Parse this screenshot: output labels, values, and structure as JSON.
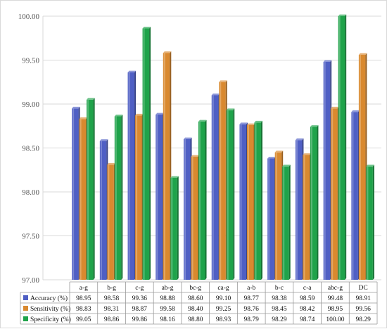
{
  "chart_data": {
    "type": "bar",
    "categories": [
      "a-g",
      "b-g",
      "c-g",
      "ab-g",
      "bc-g",
      "ca-g",
      "a-b",
      "b-c",
      "c-a",
      "abc-g",
      "DC"
    ],
    "series": [
      {
        "name": "Accuracy (%)",
        "color": "#4f5fc4",
        "values": [
          98.95,
          98.58,
          99.36,
          98.88,
          98.6,
          99.1,
          98.77,
          98.38,
          98.59,
          99.48,
          98.91
        ],
        "labels": [
          "98.95",
          "98.58",
          "99.36",
          "98.88",
          "98.60",
          "99.10",
          "98.77",
          "98.38",
          "98.59",
          "99.48",
          "98.91"
        ]
      },
      {
        "name": "Sensitivity (%)",
        "color": "#d9892f",
        "values": [
          98.83,
          98.31,
          98.87,
          99.58,
          98.4,
          99.25,
          98.76,
          98.45,
          98.42,
          98.95,
          99.56
        ],
        "labels": [
          "98.83",
          "98.31",
          "98.87",
          "99.58",
          "98.40",
          "99.25",
          "98.76",
          "98.45",
          "98.42",
          "98.95",
          "99.56"
        ]
      },
      {
        "name": "Specificity (%)",
        "color": "#1fa34a",
        "values": [
          99.05,
          98.86,
          99.86,
          98.16,
          98.8,
          98.93,
          98.79,
          98.29,
          98.74,
          100.0,
          98.29
        ],
        "labels": [
          "99.05",
          "98.86",
          "99.86",
          "98.16",
          "98.80",
          "98.93",
          "98.79",
          "98.29",
          "98.74",
          "100.00",
          "98.29"
        ]
      }
    ],
    "yticks": [
      "97.00",
      "97.50",
      "98.00",
      "98.50",
      "99.00",
      "99.50",
      "100.00"
    ],
    "ylim": [
      97.0,
      100.0
    ],
    "grid": true,
    "legend": "data table below chart"
  }
}
